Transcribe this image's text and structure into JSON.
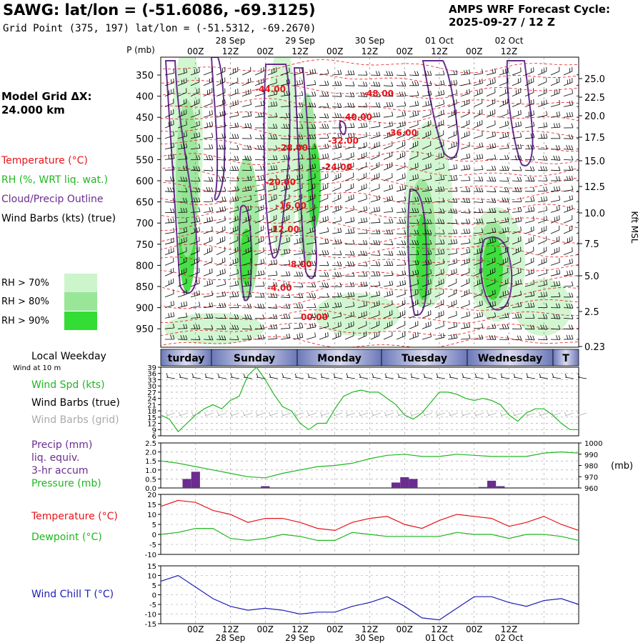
{
  "header": {
    "station_title": "SAWG:  lat/lon = (-51.6086, -69.3125)",
    "grid_point": "Grid Point (375, 197) lat/lon = (-51.5312, -69.2670)",
    "cycle_label": "AMPS WRF Forecast Cycle:",
    "cycle_value": "2025-09-27 / 12  Z"
  },
  "sidebar": {
    "model_grid_line1": "Model Grid ΔX:",
    "model_grid_line2": " 24.000 km",
    "legend": [
      {
        "label": "Temperature (°C)",
        "color": "#e8141a"
      },
      {
        "label": "RH (%, WRT liq. wat.)",
        "color": "#1fb81f"
      },
      {
        "label": "Cloud/Precip Outline",
        "color": "#6a2d8f"
      },
      {
        "label": "Wind Barbs (kts) (true)",
        "color": "#000000"
      }
    ],
    "rh_levels": [
      {
        "label": "RH > 70%",
        "color": "#ccf5cc"
      },
      {
        "label": "RH > 80%",
        "color": "#99e699"
      },
      {
        "label": "RH > 90%",
        "color": "#33dd33"
      }
    ]
  },
  "chart_data": [
    {
      "type": "heatmap",
      "id": "cross-section",
      "y_axis_label": "P (mb)",
      "y_ticks": [
        "350",
        "400",
        "450",
        "500",
        "550",
        "600",
        "650",
        "700",
        "750",
        "800",
        "850",
        "900",
        "950"
      ],
      "right_axis_label": "Kft MSL",
      "right_ticks": [
        "25.0",
        "22.5",
        "20.0",
        "17.5",
        "15.0",
        "12.5",
        "10.0",
        "7.5",
        "5.0",
        "2.5",
        "0.23"
      ],
      "top_dates": [
        "28 Sep",
        "29 Sep",
        "30 Sep",
        "01 Oct",
        "02 Oct"
      ],
      "top_hours": [
        "00Z",
        "12Z",
        "00Z",
        "12Z",
        "00Z",
        "12Z",
        "00Z",
        "12Z",
        "00Z",
        "12Z"
      ],
      "temperature_labels": [
        "-44.00",
        "-48.00",
        "-40.00",
        "-36.00",
        "-32.00",
        "-28.00",
        "-24.00",
        "-20.00",
        "-16.00",
        "-12.00",
        "-8.00",
        "-4.00",
        "00.00"
      ]
    },
    {
      "type": "table",
      "id": "weekday-bar",
      "title": "Local Weekday",
      "days": [
        "turday",
        "Sunday",
        "Monday",
        "Tuesday",
        "Wednesday",
        "T"
      ]
    },
    {
      "type": "line",
      "id": "wind-panel",
      "subtitle": "Wind at 10 m",
      "labels": [
        "Wind Spd (kts)",
        "Wind Barbs (true)",
        "Wind Barbs (grid)"
      ],
      "label_colors": [
        "#1fb81f",
        "#000000",
        "#aaaaaa"
      ],
      "y_ticks": [
        "39",
        "36",
        "33",
        "30",
        "27",
        "24",
        "21",
        "18",
        "15",
        "12",
        "9",
        "6"
      ],
      "ylim": [
        6,
        39
      ],
      "x": [
        0,
        3,
        6,
        9,
        12,
        15,
        18,
        21,
        24,
        27,
        30,
        33,
        36,
        39,
        42,
        45,
        48,
        51,
        54,
        57,
        60,
        63,
        66,
        69,
        72,
        75,
        78,
        81,
        84,
        87,
        90,
        93,
        96,
        99,
        102,
        105,
        108,
        111,
        114,
        117,
        120,
        123,
        126,
        129,
        132,
        135,
        138,
        141,
        144
      ],
      "series": [
        {
          "name": "Wind Spd (kts)",
          "color": "#1fb81f",
          "values": [
            16,
            14,
            8,
            12,
            16,
            19,
            21,
            19,
            23,
            25,
            35,
            39,
            33,
            26,
            20,
            18,
            12,
            9,
            12,
            12,
            19,
            25,
            27,
            28,
            27,
            27,
            24,
            21,
            16,
            14,
            17,
            22,
            27,
            27,
            26,
            24,
            23,
            24,
            23,
            21,
            16,
            13,
            17,
            19,
            19,
            16,
            12,
            9,
            9
          ]
        }
      ]
    },
    {
      "type": "bar",
      "id": "precip-panel",
      "labels": [
        "Precip (mm)",
        "liq. equiv.",
        "3-hr accum",
        "Pressure (mb)"
      ],
      "label_colors": [
        "#6a2d8f",
        "#6a2d8f",
        "#6a2d8f",
        "#1fb81f"
      ],
      "right_label": "(mb)",
      "y_ticks": [
        "2.5",
        "2.0",
        "1.5",
        "1.0",
        "0.5",
        "0.0"
      ],
      "right_ticks": [
        "1000",
        "990",
        "980",
        "970",
        "960"
      ],
      "ylim": [
        0,
        2.5
      ],
      "right_lim": [
        960,
        1000
      ],
      "precip": {
        "name": "Precip (mm)",
        "color": "#6a2d8f",
        "x": [
          9,
          12,
          36,
          81,
          84,
          87,
          111,
          114,
          117
        ],
        "values": [
          0.5,
          0.9,
          0.1,
          0.3,
          0.6,
          0.5,
          0.05,
          0.4,
          0.1
        ]
      },
      "pressure": {
        "name": "Pressure (mb)",
        "color": "#1fb81f",
        "x": [
          0,
          6,
          12,
          18,
          24,
          30,
          36,
          42,
          48,
          54,
          60,
          66,
          72,
          78,
          84,
          90,
          96,
          102,
          108,
          114,
          120,
          126,
          132,
          138,
          144
        ],
        "values": [
          984,
          982,
          979,
          976,
          973,
          970,
          969,
          973,
          976,
          979,
          980,
          982,
          986,
          989,
          990,
          988,
          988,
          990,
          989,
          988,
          988,
          988,
          991,
          992,
          991
        ]
      }
    },
    {
      "type": "line",
      "id": "temp-panel",
      "labels": [
        "Temperature (°C)",
        "Dewpoint (°C)"
      ],
      "label_colors": [
        "#e8141a",
        "#1fb81f"
      ],
      "y_ticks": [
        "20",
        "15",
        "10",
        "5",
        "0",
        "-5",
        "-10"
      ],
      "ylim": [
        -10,
        20
      ],
      "x": [
        0,
        6,
        12,
        18,
        24,
        30,
        36,
        42,
        48,
        54,
        60,
        66,
        72,
        78,
        84,
        90,
        96,
        102,
        108,
        114,
        120,
        126,
        132,
        138,
        144
      ],
      "series": [
        {
          "name": "Temperature (°C)",
          "color": "#e8141a",
          "values": [
            14,
            17,
            16,
            12,
            10,
            6,
            8,
            8,
            6,
            3,
            2,
            6,
            8,
            9,
            5,
            3,
            7,
            10,
            9,
            8,
            4,
            6,
            9,
            5,
            2
          ]
        },
        {
          "name": "Dewpoint (°C)",
          "color": "#1fb81f",
          "values": [
            0,
            1,
            3,
            3,
            -2,
            -3,
            -2,
            0,
            -1,
            -3,
            -3,
            1,
            0,
            -1,
            -1,
            -1,
            -1,
            1,
            0,
            0,
            -2,
            0,
            0,
            -1,
            -3
          ]
        }
      ]
    },
    {
      "type": "line",
      "id": "windchill-panel",
      "labels": [
        "Wind Chill T (°C)"
      ],
      "label_colors": [
        "#1e1eb4"
      ],
      "y_ticks": [
        "15",
        "10",
        "5",
        "0",
        "-5",
        "-10",
        "-15"
      ],
      "ylim": [
        -15,
        15
      ],
      "bottom_hours": [
        "00Z",
        "12Z",
        "00Z",
        "12Z",
        "00Z",
        "12Z",
        "00Z",
        "12Z",
        "00Z",
        "12Z"
      ],
      "bottom_dates": [
        "28 Sep",
        "29 Sep",
        "30 Sep",
        "01 Oct",
        "02 Oct"
      ],
      "x": [
        0,
        6,
        12,
        18,
        24,
        30,
        36,
        42,
        48,
        54,
        60,
        66,
        72,
        78,
        84,
        90,
        96,
        102,
        108,
        114,
        120,
        126,
        132,
        138,
        144
      ],
      "series": [
        {
          "name": "Wind Chill T (°C)",
          "color": "#1e1eb4",
          "values": [
            7,
            10,
            4,
            -2,
            -6,
            -8,
            -7,
            -8,
            -10,
            -9,
            -9,
            -6,
            -4,
            -1,
            -6,
            -12,
            -13,
            -7,
            -1,
            -1,
            -4,
            -6,
            -3,
            -2,
            -5
          ]
        }
      ]
    }
  ]
}
